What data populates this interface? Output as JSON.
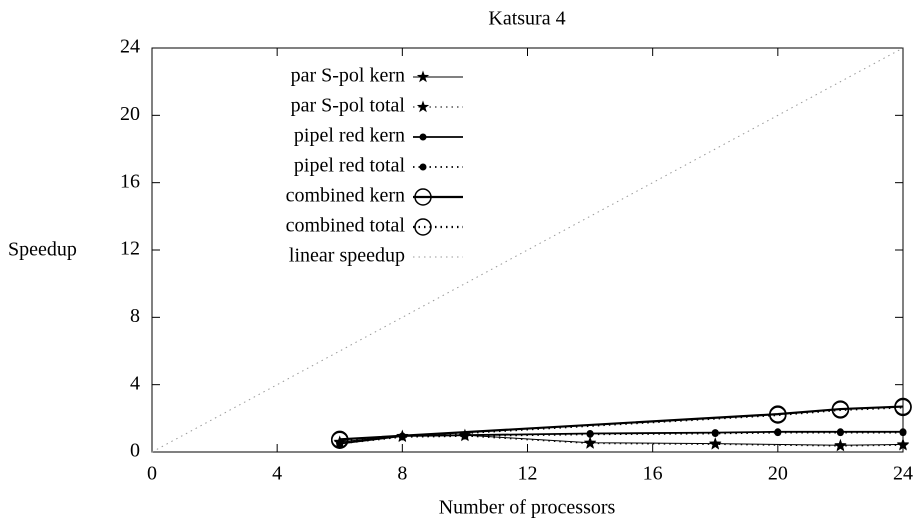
{
  "chart_data": {
    "type": "line",
    "title": "Katsura 4",
    "x_label": "Number of processors",
    "y_label": "Speedup",
    "xlim": [
      0,
      24
    ],
    "xticks": [
      0,
      4,
      8,
      12,
      16,
      20,
      24
    ],
    "ylim": [
      0,
      24
    ],
    "yticks": [
      0,
      4,
      8,
      12,
      16,
      20,
      24
    ],
    "legend": "top-left",
    "series": [
      {
        "name": "par S-pol kern",
        "color": "#000000",
        "marker": "star",
        "dash": "solid",
        "width": 1,
        "x": [
          6,
          8,
          10,
          14,
          18,
          22,
          24
        ],
        "values": [
          0.6,
          0.95,
          1.0,
          0.55,
          0.5,
          0.4,
          0.45
        ]
      },
      {
        "name": "par S-pol total",
        "color": "#000000",
        "marker": "star",
        "dash": "dotted",
        "width": 1,
        "x": [
          6,
          8,
          10,
          14,
          18,
          22,
          24
        ],
        "values": [
          0.55,
          0.9,
          0.95,
          0.5,
          0.45,
          0.35,
          0.4
        ]
      },
      {
        "name": "pipel red kern",
        "color": "#000000",
        "marker": "dot",
        "dash": "solid",
        "width": 1.8,
        "x": [
          6,
          8,
          10,
          14,
          18,
          20,
          22,
          24
        ],
        "values": [
          0.5,
          0.95,
          1.0,
          1.1,
          1.15,
          1.2,
          1.2,
          1.2
        ]
      },
      {
        "name": "pipel red total",
        "color": "#000000",
        "marker": "dot",
        "dash": "dotted",
        "width": 1.8,
        "x": [
          6,
          8,
          10,
          14,
          18,
          20,
          22,
          24
        ],
        "values": [
          0.5,
          0.9,
          0.95,
          1.05,
          1.1,
          1.15,
          1.15,
          1.15
        ]
      },
      {
        "name": "combined kern",
        "color": "#000000",
        "marker": "circle",
        "dash": "solid",
        "width": 2.2,
        "x": [
          6,
          20,
          22,
          24
        ],
        "values": [
          0.75,
          2.25,
          2.55,
          2.7
        ]
      },
      {
        "name": "combined total",
        "color": "#000000",
        "marker": "circle",
        "dash": "dotted",
        "width": 2.2,
        "x": [
          6,
          20,
          22,
          24
        ],
        "values": [
          0.7,
          2.2,
          2.5,
          2.65
        ]
      },
      {
        "name": "linear speedup",
        "color": "#999999",
        "marker": "none",
        "dash": "dotted",
        "width": 1,
        "x": [
          0,
          24
        ],
        "values": [
          0,
          24
        ]
      }
    ]
  }
}
